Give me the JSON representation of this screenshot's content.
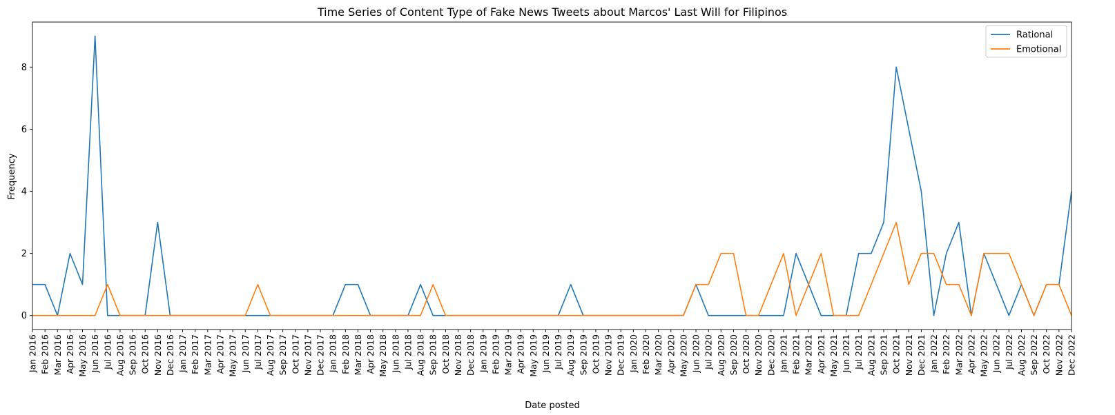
{
  "chart_data": {
    "type": "line",
    "title": "Time Series of Content Type of Fake News Tweets about Marcos' Last Will for Filipinos",
    "xlabel": "Date posted",
    "ylabel": "Frequency",
    "ylim": [
      -0.45,
      9.45
    ],
    "yticks": [
      0,
      2,
      4,
      6,
      8
    ],
    "grid": false,
    "legend_position": "top-right",
    "categories": [
      "Jan 2016",
      "Feb 2016",
      "Mar 2016",
      "Apr 2016",
      "May 2016",
      "Jun 2016",
      "Jul 2016",
      "Aug 2016",
      "Sep 2016",
      "Oct 2016",
      "Nov 2016",
      "Dec 2016",
      "Jan 2017",
      "Feb 2017",
      "Mar 2017",
      "Apr 2017",
      "May 2017",
      "Jun 2017",
      "Jul 2017",
      "Aug 2017",
      "Sep 2017",
      "Oct 2017",
      "Nov 2017",
      "Dec 2017",
      "Jan 2018",
      "Feb 2018",
      "Mar 2018",
      "Apr 2018",
      "May 2018",
      "Jun 2018",
      "Jul 2018",
      "Aug 2018",
      "Sep 2018",
      "Oct 2018",
      "Nov 2018",
      "Dec 2018",
      "Jan 2019",
      "Feb 2019",
      "Mar 2019",
      "Apr 2019",
      "May 2019",
      "Jun 2019",
      "Jul 2019",
      "Aug 2019",
      "Sep 2019",
      "Oct 2019",
      "Nov 2019",
      "Dec 2019",
      "Jan 2020",
      "Feb 2020",
      "Mar 2020",
      "Apr 2020",
      "May 2020",
      "Jun 2020",
      "Jul 2020",
      "Aug 2020",
      "Sep 2020",
      "Oct 2020",
      "Nov 2020",
      "Dec 2020",
      "Jan 2021",
      "Feb 2021",
      "Mar 2021",
      "Apr 2021",
      "May 2021",
      "Jun 2021",
      "Jul 2021",
      "Aug 2021",
      "Sep 2021",
      "Oct 2021",
      "Nov 2021",
      "Dec 2021",
      "Jan 2022",
      "Feb 2022",
      "Mar 2022",
      "Apr 2022",
      "May 2022",
      "Jun 2022",
      "Jul 2022",
      "Aug 2022",
      "Sep 2022",
      "Oct 2022",
      "Nov 2022",
      "Dec 2022"
    ],
    "series": [
      {
        "name": "Rational",
        "color": "#1f77b4",
        "values": [
          1,
          1,
          0,
          2,
          1,
          9,
          0,
          0,
          0,
          0,
          3,
          0,
          0,
          0,
          0,
          0,
          0,
          0,
          0,
          0,
          0,
          0,
          0,
          0,
          0,
          1,
          1,
          0,
          0,
          0,
          0,
          1,
          0,
          0,
          0,
          0,
          0,
          0,
          0,
          0,
          0,
          0,
          0,
          1,
          0,
          0,
          0,
          0,
          0,
          0,
          0,
          0,
          0,
          1,
          0,
          0,
          0,
          0,
          0,
          0,
          0,
          2,
          1,
          0,
          0,
          0,
          2,
          2,
          3,
          8,
          6,
          4,
          0,
          2,
          3,
          0,
          2,
          1,
          0,
          1,
          0,
          1,
          1,
          4
        ]
      },
      {
        "name": "Emotional",
        "color": "#ff7f0e",
        "values": [
          0,
          0,
          0,
          0,
          0,
          0,
          1,
          0,
          0,
          0,
          0,
          0,
          0,
          0,
          0,
          0,
          0,
          0,
          1,
          0,
          0,
          0,
          0,
          0,
          0,
          0,
          0,
          0,
          0,
          0,
          0,
          0,
          1,
          0,
          0,
          0,
          0,
          0,
          0,
          0,
          0,
          0,
          0,
          0,
          0,
          0,
          0,
          0,
          0,
          0,
          0,
          0,
          0,
          1,
          1,
          2,
          2,
          0,
          0,
          1,
          2,
          0,
          1,
          2,
          0,
          0,
          0,
          1,
          2,
          3,
          1,
          2,
          2,
          1,
          1,
          0,
          2,
          2,
          2,
          1,
          0,
          1,
          1,
          0
        ]
      }
    ]
  }
}
